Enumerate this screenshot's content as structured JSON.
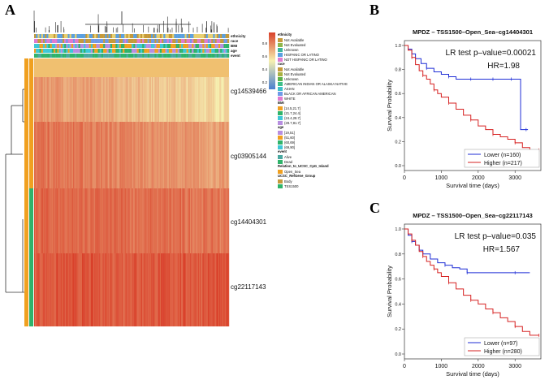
{
  "panels": {
    "a": "A",
    "b": "B",
    "c": "C"
  },
  "colors": {
    "heat_low": "#4a7fd0",
    "heat_mid": "#f6f0b0",
    "heat_high": "#d9402a",
    "km_lower": "#1f2ed6",
    "km_higher": "#d62020",
    "anno_orange": "#f0a020",
    "anno_green": "#2fb36a",
    "anno_cyan": "#3ec7d6",
    "anno_purple": "#b88ee0",
    "anno_teal": "#4aa8a0",
    "anno_pink": "#e88ad0"
  },
  "heatmap": {
    "col_annotation_labels": [
      "ethnicity",
      "race",
      "BMI",
      "age",
      "event"
    ],
    "row_labels": [
      "cg14539466",
      "cg03905144",
      "cg14404301",
      "cg22117143"
    ],
    "colorbar_ticks": [
      "0.8",
      "0.6",
      "0.4",
      "0.2"
    ],
    "legend": [
      {
        "title": "ethnicity",
        "items": [
          {
            "label": "Not Available",
            "color": "#c69a3a"
          },
          {
            "label": "Not Evaluated",
            "color": "#8fb64a"
          },
          {
            "label": "Unknown",
            "color": "#3eb59a"
          },
          {
            "label": "HISPANIC OR LATINO",
            "color": "#5aa0e0"
          },
          {
            "label": "NOT HISPANIC OR LATINO",
            "color": "#e07ad0"
          }
        ]
      },
      {
        "title": "race",
        "items": [
          {
            "label": "Not Available",
            "color": "#c69a3a"
          },
          {
            "label": "Not Evaluated",
            "color": "#a8b040"
          },
          {
            "label": "Unknown",
            "color": "#5cb04a"
          },
          {
            "label": "AMERICAN INDIAN OR ALASKA NATIVE",
            "color": "#3ebf8a"
          },
          {
            "label": "ASIAN",
            "color": "#3ebfc8"
          },
          {
            "label": "BLACK OR AFRICAN AMERICAN",
            "color": "#6f9ae8"
          },
          {
            "label": "WHITE",
            "color": "#e07ad0"
          }
        ]
      },
      {
        "title": "BMI",
        "items": [
          {
            "label": "[14.5,21.7]",
            "color": "#f0a020"
          },
          {
            "label": "(21.7,24.4]",
            "color": "#2fb36a"
          },
          {
            "label": "(24.4,28.7]",
            "color": "#3ec7d6"
          },
          {
            "label": "(28.7,81.7]",
            "color": "#b88ee0"
          }
        ]
      },
      {
        "title": "age",
        "items": [
          {
            "label": "[19,51]",
            "color": "#b88ee0"
          },
          {
            "label": "(51,60]",
            "color": "#f0a020"
          },
          {
            "label": "(60,69]",
            "color": "#2fb36a"
          },
          {
            "label": "(69,90]",
            "color": "#3ec7d6"
          }
        ]
      },
      {
        "title": "event",
        "items": [
          {
            "label": "Alive",
            "color": "#4aa8a0"
          },
          {
            "label": "Dead",
            "color": "#2fb36a"
          }
        ]
      },
      {
        "title": "Relation_to_UCSC_CpG_Island",
        "items": [
          {
            "label": "Open_Sea",
            "color": "#f0a020"
          }
        ]
      },
      {
        "title": "UCSC_RefGene_Group",
        "items": [
          {
            "label": "Body",
            "color": "#c69a3a"
          },
          {
            "label": "TSS1500",
            "color": "#2fb36a"
          }
        ]
      }
    ]
  },
  "chart_data": [
    {
      "type": "line",
      "panel": "B",
      "title": "MPDZ – TSS1500–Open_Sea–cg14404301",
      "xlabel": "Survival time (days)",
      "ylabel": "Survival Probability",
      "xlim": [
        0,
        3700
      ],
      "ylim": [
        0,
        1.0
      ],
      "x_ticks": [
        0,
        1000,
        2000,
        3000
      ],
      "y_ticks": [
        "0.0",
        "0.2",
        "0.4",
        "0.6",
        "0.8",
        "1.0"
      ],
      "annotation": [
        "LR test p–value=0.00021",
        "HR=1.98"
      ],
      "legend": [
        "Lower (n=160)",
        "Higher (n=217)"
      ],
      "series": [
        {
          "name": "Lower (n=160)",
          "color": "#1f2ed6",
          "x": [
            0,
            100,
            200,
            300,
            450,
            600,
            800,
            1000,
            1200,
            1400,
            1600,
            1800,
            2000,
            2200,
            2400,
            2500,
            2700,
            2900,
            3100,
            3150,
            3300,
            3350
          ],
          "y": [
            1.0,
            0.97,
            0.93,
            0.89,
            0.85,
            0.81,
            0.78,
            0.76,
            0.74,
            0.72,
            0.72,
            0.72,
            0.72,
            0.72,
            0.72,
            0.72,
            0.72,
            0.72,
            0.72,
            0.3,
            0.3,
            0.3
          ]
        },
        {
          "name": "Higher (n=217)",
          "color": "#d62020",
          "x": [
            0,
            100,
            200,
            300,
            400,
            500,
            600,
            700,
            800,
            900,
            1000,
            1200,
            1400,
            1600,
            1800,
            2000,
            2200,
            2400,
            2600,
            2800,
            3000,
            3200,
            3400,
            3650
          ],
          "y": [
            1.0,
            0.96,
            0.9,
            0.84,
            0.79,
            0.75,
            0.72,
            0.68,
            0.63,
            0.6,
            0.57,
            0.52,
            0.47,
            0.42,
            0.38,
            0.33,
            0.3,
            0.26,
            0.24,
            0.22,
            0.19,
            0.15,
            0.13,
            0.13
          ]
        }
      ]
    },
    {
      "type": "line",
      "panel": "C",
      "title": "MPDZ – TSS1500–Open_Sea–cg22117143",
      "xlabel": "Survival time (days)",
      "ylabel": "Survival Probability",
      "xlim": [
        0,
        3700
      ],
      "ylim": [
        0,
        1.0
      ],
      "x_ticks": [
        0,
        1000,
        2000,
        3000
      ],
      "y_ticks": [
        "0.0",
        "0.2",
        "0.4",
        "0.6",
        "0.8",
        "1.0"
      ],
      "annotation": [
        "LR test p–value=0.035",
        "HR=1.567"
      ],
      "legend": [
        "Lower (n=97)",
        "Higher (n=280)"
      ],
      "series": [
        {
          "name": "Lower (n=97)",
          "color": "#1f2ed6",
          "x": [
            0,
            100,
            200,
            300,
            400,
            500,
            700,
            900,
            1100,
            1300,
            1500,
            1700,
            2000,
            2500,
            3000,
            3400
          ],
          "y": [
            1.0,
            0.95,
            0.9,
            0.87,
            0.83,
            0.8,
            0.76,
            0.73,
            0.71,
            0.69,
            0.68,
            0.65,
            0.65,
            0.65,
            0.65,
            0.65
          ]
        },
        {
          "name": "Higher (n=280)",
          "color": "#d62020",
          "x": [
            0,
            100,
            200,
            300,
            400,
            500,
            600,
            700,
            800,
            900,
            1000,
            1200,
            1400,
            1600,
            1800,
            2000,
            2200,
            2400,
            2600,
            2800,
            3000,
            3200,
            3400,
            3650
          ],
          "y": [
            1.0,
            0.96,
            0.91,
            0.87,
            0.82,
            0.78,
            0.74,
            0.71,
            0.68,
            0.65,
            0.62,
            0.57,
            0.52,
            0.47,
            0.43,
            0.4,
            0.36,
            0.33,
            0.29,
            0.26,
            0.22,
            0.18,
            0.15,
            0.15
          ]
        }
      ]
    }
  ]
}
